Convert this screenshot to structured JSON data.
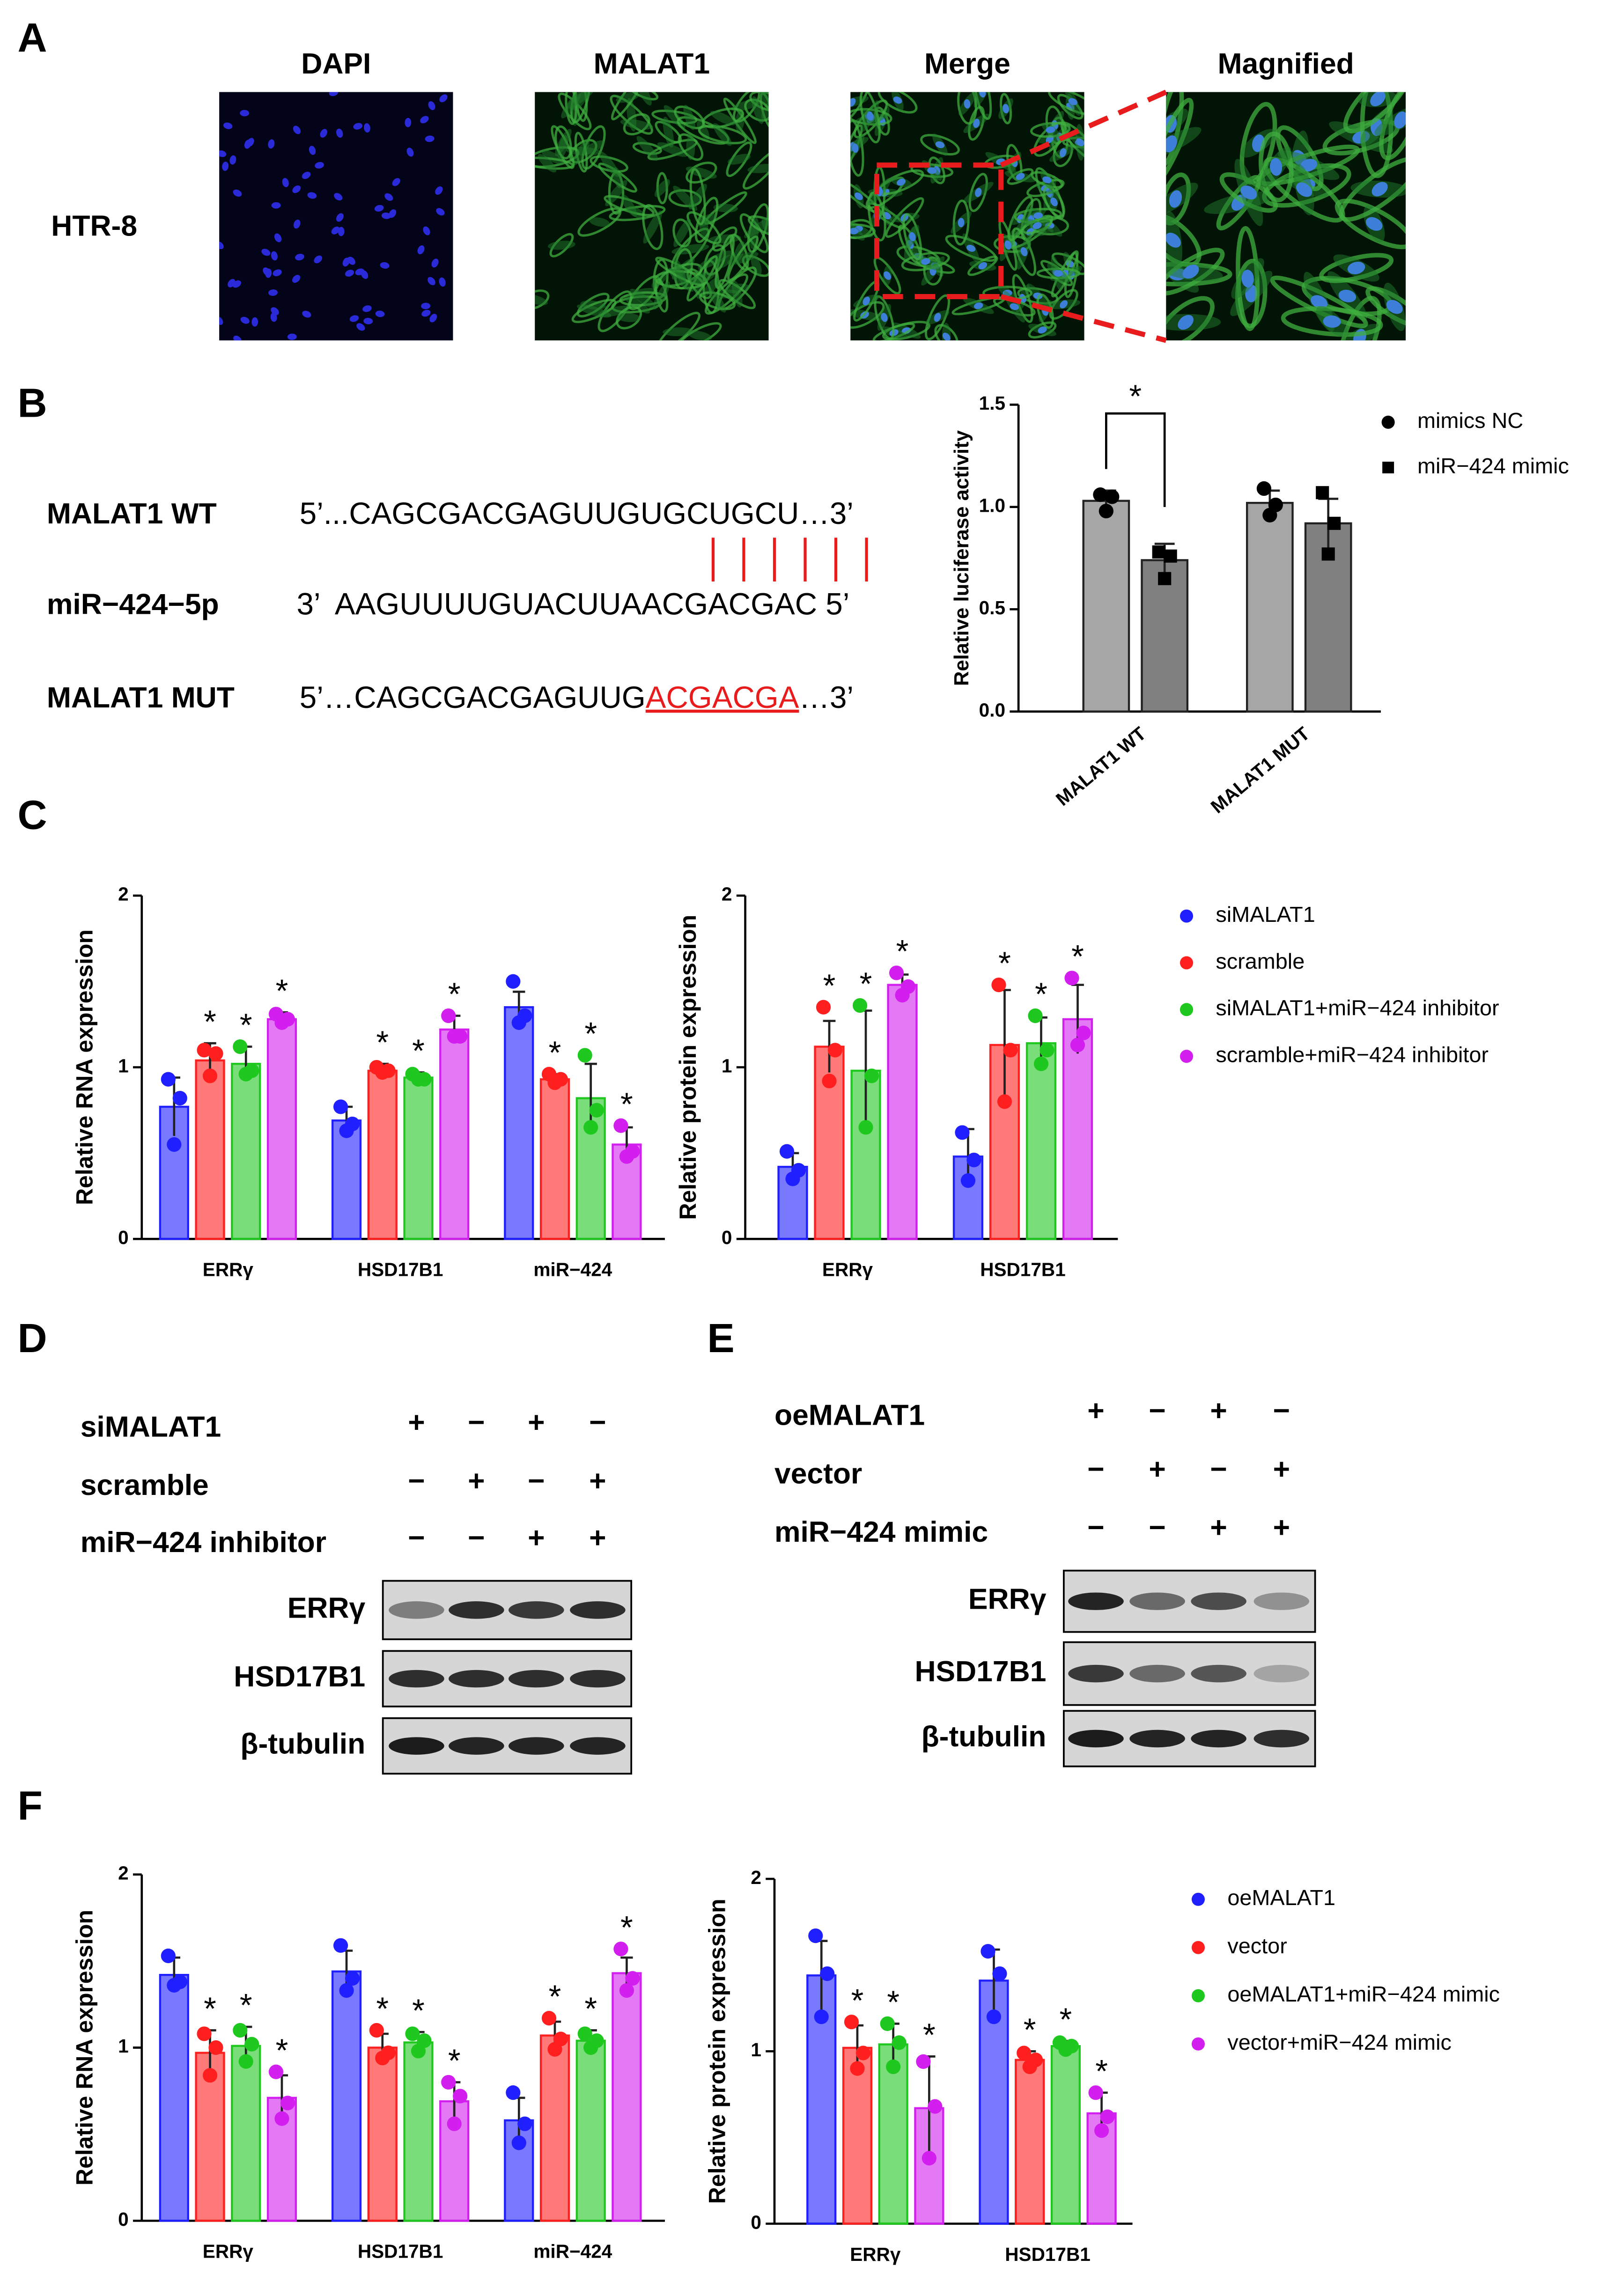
{
  "panel_labels": [
    "A",
    "B",
    "C",
    "D",
    "E",
    "F"
  ],
  "panel_a": {
    "columns": [
      "DAPI",
      "MALAT1",
      "Merge",
      "Magnified"
    ],
    "row_label": "HTR-8"
  },
  "panel_b_sequences": {
    "wt": {
      "name": "MALAT1 WT",
      "sequence": "5’...CAGCGACGAGUUGUGCUGCU…3’"
    },
    "mirna": {
      "name": "miR−424−5p",
      "sequence": "3’  AAGUUUUGUACUUAACGACGAC 5’"
    },
    "mut": {
      "name": "MALAT1 MUT",
      "prefix": "5’…CAGCGACGAGUUG",
      "mutated": "ACGACGA",
      "suffix": "…3’"
    }
  },
  "panel_d": {
    "conditions": [
      {
        "name": "siMALAT1",
        "signs": [
          "+",
          "−",
          "+",
          "−"
        ]
      },
      {
        "name": "scramble",
        "signs": [
          "−",
          "+",
          "−",
          "+"
        ]
      },
      {
        "name": "miR−424 inhibitor",
        "signs": [
          "−",
          "−",
          "+",
          "+"
        ]
      }
    ],
    "bands": [
      "ERRγ",
      "HSD17B1",
      "β-tubulin"
    ]
  },
  "panel_e": {
    "conditions": [
      {
        "name": "oeMALAT1",
        "signs": [
          "+",
          "−",
          "+",
          "−"
        ]
      },
      {
        "name": "vector",
        "signs": [
          "−",
          "+",
          "−",
          "+"
        ]
      },
      {
        "name": "miR−424 mimic",
        "signs": [
          "−",
          "−",
          "+",
          "+"
        ]
      }
    ],
    "bands": [
      "ERRγ",
      "HSD17B1",
      "β-tubulin"
    ]
  },
  "chart_data": [
    {
      "type": "bar",
      "y_label": "Relative luciferase activity",
      "categories": [
        "MALAT1 WT",
        "MALAT1 MUT"
      ],
      "ylim": [
        0,
        1.5
      ],
      "yticks": [
        {
          "value": 0,
          "label": "0.0"
        },
        0.5,
        {
          "value": 1,
          "label": "1.0"
        },
        1.5
      ],
      "point_color": "#000000",
      "bracket": "*",
      "series": [
        {
          "name": "mimics NC",
          "marker": "circle",
          "color": "#a6a6a6",
          "values": [
            1.03,
            1.02
          ],
          "errors": [
            0.05,
            0.06
          ],
          "points": [
            [
              1.06,
              1.05,
              0.98
            ],
            [
              1.09,
              1.01,
              0.96
            ]
          ]
        },
        {
          "name": "miR−424 mimic",
          "marker": "square",
          "color": "#808080",
          "values": [
            0.74,
            0.92
          ],
          "errors": [
            0.08,
            0.12
          ],
          "points": [
            [
              0.78,
              0.76,
              0.65
            ],
            [
              1.07,
              0.92,
              0.77
            ]
          ]
        }
      ]
    },
    {
      "type": "bar",
      "y_label": "Relative RNA expression",
      "categories": [
        "ERRγ",
        "HSD17B1",
        "miR−424"
      ],
      "ylim": [
        0,
        2
      ],
      "yticks": [
        0,
        1,
        2
      ],
      "series": [
        {
          "color": "#1f1fff",
          "values": [
            0.77,
            0.69,
            1.35
          ],
          "errors": [
            0.17,
            0.08,
            0.09
          ],
          "points": [
            [
              0.93,
              0.82,
              0.55
            ],
            [
              0.77,
              0.67,
              0.63
            ],
            [
              1.5,
              1.3,
              1.26
            ]
          ]
        },
        {
          "color": "#ff1f1f",
          "values": [
            1.04,
            0.98,
            0.93
          ],
          "errors": [
            0.1,
            0.04,
            0.03
          ],
          "points": [
            [
              1.1,
              1.08,
              0.95
            ],
            [
              1.0,
              0.98,
              0.97
            ],
            [
              0.96,
              0.93,
              0.91
            ]
          ],
          "annotations": [
            "*",
            "*",
            "*"
          ]
        },
        {
          "color": "#1fc81f",
          "values": [
            1.02,
            0.94,
            0.82
          ],
          "errors": [
            0.1,
            0.03,
            0.2
          ],
          "points": [
            [
              1.12,
              0.98,
              0.96
            ],
            [
              0.96,
              0.93,
              0.93
            ],
            [
              1.07,
              0.75,
              0.65
            ]
          ],
          "annotations": [
            "*",
            "*",
            "*"
          ]
        },
        {
          "color": "#d21fef",
          "values": [
            1.28,
            1.22,
            0.55
          ],
          "errors": [
            0.04,
            0.08,
            0.1
          ],
          "points": [
            [
              1.31,
              1.28,
              1.26
            ],
            [
              1.3,
              1.18,
              1.18
            ],
            [
              0.66,
              0.51,
              0.48
            ]
          ],
          "annotations": [
            "*",
            "*",
            "*"
          ]
        }
      ]
    },
    {
      "type": "bar",
      "y_label": "Relative protein expression",
      "categories": [
        "ERRγ",
        "HSD17B1"
      ],
      "ylim": [
        0,
        2
      ],
      "yticks": [
        0,
        1,
        2
      ],
      "series": [
        {
          "name": "siMALAT1",
          "marker": "circle",
          "color": "#1f1fff",
          "values": [
            0.42,
            0.48
          ],
          "errors": [
            0.08,
            0.16
          ],
          "points": [
            [
              0.51,
              0.4,
              0.35
            ],
            [
              0.62,
              0.46,
              0.34
            ]
          ]
        },
        {
          "name": "scramble",
          "marker": "circle",
          "color": "#ff1f1f",
          "values": [
            1.12,
            1.13
          ],
          "errors": [
            0.15,
            0.32
          ],
          "points": [
            [
              1.35,
              1.1,
              0.92
            ],
            [
              1.48,
              1.1,
              0.8
            ]
          ],
          "annotations": [
            "*",
            "*"
          ]
        },
        {
          "name": "siMALAT1+miR−424 inhibitor",
          "marker": "circle",
          "color": "#1fc81f",
          "values": [
            0.98,
            1.14
          ],
          "errors": [
            0.35,
            0.15
          ],
          "points": [
            [
              1.36,
              0.95,
              0.65
            ],
            [
              1.3,
              1.1,
              1.02
            ]
          ],
          "annotations": [
            "*",
            "*"
          ]
        },
        {
          "name": "scramble+miR−424 inhibitor",
          "marker": "circle",
          "color": "#d21fef",
          "values": [
            1.48,
            1.28
          ],
          "errors": [
            0.06,
            0.2
          ],
          "points": [
            [
              1.55,
              1.47,
              1.42
            ],
            [
              1.52,
              1.2,
              1.13
            ]
          ],
          "annotations": [
            "*",
            "*"
          ]
        }
      ]
    },
    {
      "type": "bar",
      "y_label": "Relative RNA expression",
      "categories": [
        "ERRγ",
        "HSD17B1",
        "miR−424"
      ],
      "ylim": [
        0,
        2
      ],
      "yticks": [
        0,
        1,
        2
      ],
      "series": [
        {
          "color": "#1f1fff",
          "values": [
            1.42,
            1.44,
            0.58
          ],
          "errors": [
            0.1,
            0.12,
            0.13
          ],
          "points": [
            [
              1.53,
              1.38,
              1.36
            ],
            [
              1.59,
              1.4,
              1.33
            ],
            [
              0.74,
              0.56,
              0.45
            ]
          ]
        },
        {
          "color": "#ff1f1f",
          "values": [
            0.97,
            1.0,
            1.07
          ],
          "errors": [
            0.13,
            0.08,
            0.08
          ],
          "points": [
            [
              1.08,
              1.0,
              0.84
            ],
            [
              1.1,
              0.97,
              0.94
            ],
            [
              1.17,
              1.05,
              0.99
            ]
          ],
          "annotations": [
            "*",
            "*",
            "*"
          ]
        },
        {
          "color": "#1fc81f",
          "values": [
            1.01,
            1.03,
            1.04
          ],
          "errors": [
            0.11,
            0.06,
            0.06
          ],
          "points": [
            [
              1.1,
              1.02,
              0.92
            ],
            [
              1.08,
              1.04,
              0.98
            ],
            [
              1.08,
              1.04,
              1.0
            ]
          ],
          "annotations": [
            "*",
            "*",
            "*"
          ]
        },
        {
          "color": "#d21fef",
          "values": [
            0.71,
            0.69,
            1.43
          ],
          "errors": [
            0.13,
            0.11,
            0.09
          ],
          "points": [
            [
              0.86,
              0.68,
              0.59
            ],
            [
              0.8,
              0.72,
              0.56
            ],
            [
              1.57,
              1.4,
              1.33
            ]
          ],
          "annotations": [
            "*",
            "*",
            "*"
          ]
        }
      ]
    },
    {
      "type": "bar",
      "y_label": "Relative protein expression",
      "categories": [
        "ERRγ",
        "HSD17B1"
      ],
      "ylim": [
        0,
        2
      ],
      "yticks": [
        0,
        1,
        2
      ],
      "series": [
        {
          "name": "oeMALAT1",
          "marker": "circle",
          "color": "#1f1fff",
          "values": [
            1.44,
            1.41
          ],
          "errors": [
            0.2,
            0.18
          ],
          "points": [
            [
              1.67,
              1.45,
              1.2
            ],
            [
              1.58,
              1.45,
              1.2
            ]
          ]
        },
        {
          "name": "vector",
          "marker": "circle",
          "color": "#ff1f1f",
          "values": [
            1.02,
            0.95
          ],
          "errors": [
            0.13,
            0.05
          ],
          "points": [
            [
              1.17,
              0.99,
              0.9
            ],
            [
              0.99,
              0.95,
              0.91
            ]
          ],
          "annotations": [
            "*",
            "*"
          ]
        },
        {
          "name": "oeMALAT1+miR−424 mimic",
          "marker": "circle",
          "color": "#1fc81f",
          "values": [
            1.04,
            1.03
          ],
          "errors": [
            0.12,
            0.03
          ],
          "points": [
            [
              1.16,
              1.05,
              0.91
            ],
            [
              1.05,
              1.03,
              1.01
            ]
          ],
          "annotations": [
            "*",
            "*"
          ]
        },
        {
          "name": "vector+miR−424 mimic",
          "marker": "circle",
          "color": "#d21fef",
          "values": [
            0.67,
            0.64
          ],
          "errors": [
            0.3,
            0.12
          ],
          "points": [
            [
              0.94,
              0.68,
              0.38
            ],
            [
              0.76,
              0.62,
              0.54
            ]
          ],
          "annotations": [
            "*",
            "*"
          ]
        }
      ]
    }
  ]
}
